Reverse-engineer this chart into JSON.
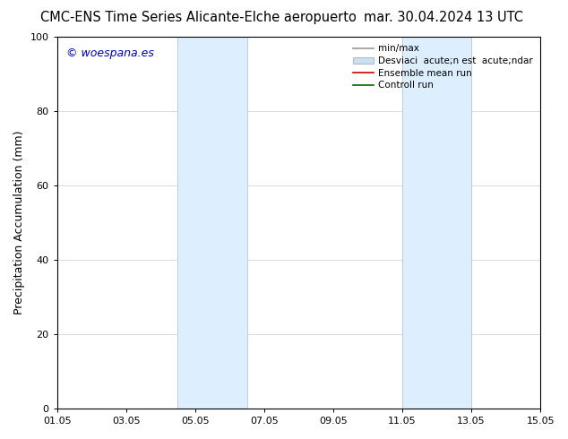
{
  "title_left": "CMC-ENS Time Series Alicante-Elche aeropuerto",
  "title_right": "mar. 30.04.2024 13 UTC",
  "ylabel": "Precipitation Accumulation (mm)",
  "ylim": [
    0,
    100
  ],
  "yticks": [
    0,
    20,
    40,
    60,
    80,
    100
  ],
  "xtick_labels": [
    "01.05",
    "03.05",
    "05.05",
    "07.05",
    "09.05",
    "11.05",
    "13.05",
    "15.05"
  ],
  "xtick_positions": [
    0,
    2,
    4,
    6,
    8,
    10,
    12,
    14
  ],
  "xlim": [
    0,
    14
  ],
  "shaded_bands": [
    {
      "x_start": 3.5,
      "x_end": 5.5
    },
    {
      "x_start": 10.0,
      "x_end": 12.0
    }
  ],
  "shaded_facecolor": "#ddeeff",
  "shaded_edgecolor": "#b8cfe0",
  "watermark_text": "© woespana.es",
  "watermark_color": "#0000bb",
  "legend_label_minmax": "min/max",
  "legend_label_std": "Desviaci  acute;n est  acute;ndar",
  "legend_label_ensemble": "Ensemble mean run",
  "legend_label_control": "Controll run",
  "legend_color_minmax": "#999999",
  "legend_color_std_face": "#cce0f0",
  "legend_color_std_edge": "#aabbcc",
  "legend_color_ensemble": "#cc0000",
  "legend_color_control": "#006600",
  "bg_color": "#ffffff",
  "grid_color": "#cccccc",
  "title_fontsize": 10.5,
  "ylabel_fontsize": 9,
  "tick_fontsize": 8,
  "watermark_fontsize": 9,
  "legend_fontsize": 7.5
}
